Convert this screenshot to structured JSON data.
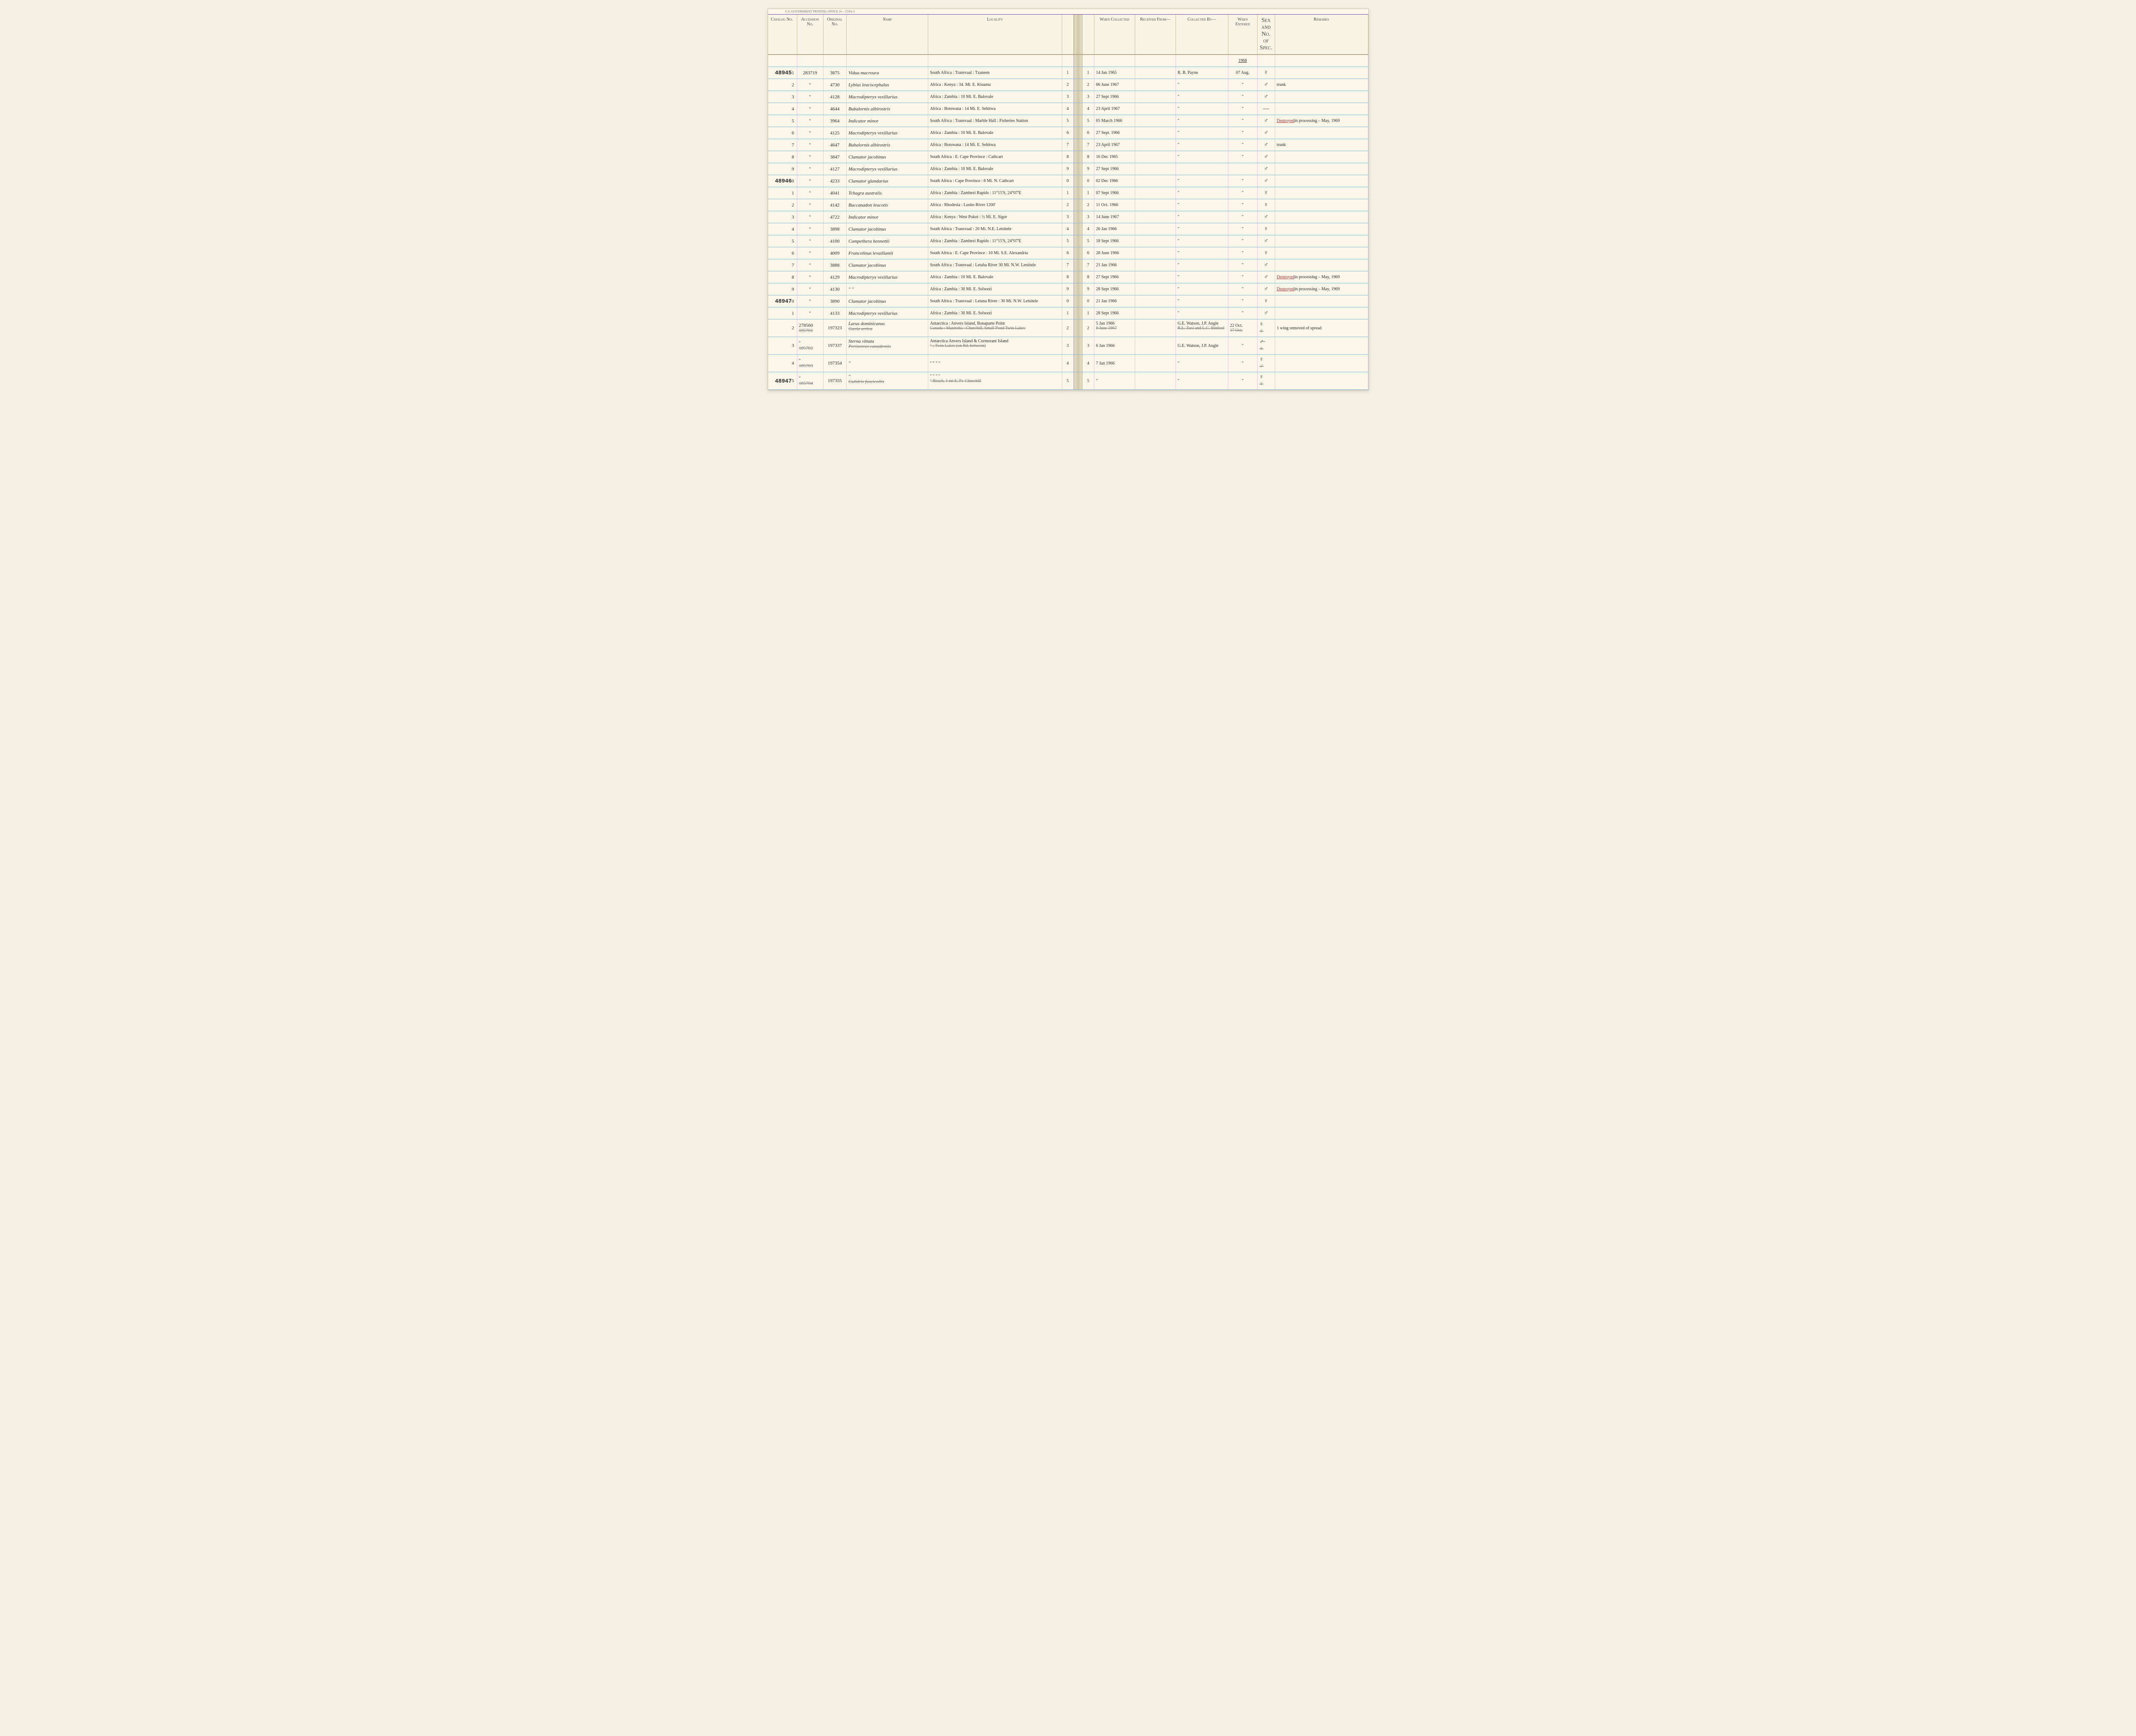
{
  "printing_office": "U.S. Government Printing Office   16—72501-2",
  "headers": {
    "catalog": "Catalog No.",
    "accession": "Accession No.",
    "original": "Original No.",
    "name": "Name",
    "locality": "Locality",
    "when_collected": "When Collected",
    "received_from": "Received From—",
    "collected_by": "Collected By—",
    "when_entered": "When Entered",
    "sex": "Sex and No. of Spec.",
    "remarks": "Remarks"
  },
  "year_entered": "1968",
  "rows": [
    {
      "catalog": "489451",
      "catalog_stamp": "48945",
      "row": "1",
      "accession": "283719",
      "original": "3875",
      "name": "Vidua macroura",
      "locality": "South Africa : Transvaal : Tzaneen",
      "when": "14 Jan 1965",
      "received": "",
      "collected": "R. B. Payne",
      "entered": "07 Aug.",
      "sex": "♀",
      "remarks": ""
    },
    {
      "row": "2",
      "accession": "\"",
      "original": "4730",
      "name": "Lybius leucocephalus",
      "locality": "Africa : Kenya : 34. Mi. E. Kisumu",
      "when": "06 June 1967",
      "received": "",
      "collected": "\"",
      "entered": "\"",
      "sex": "♂",
      "remarks": "trunk"
    },
    {
      "row": "3",
      "accession": "\"",
      "original": "4128",
      "name": "Macrodipteryx vexillarius",
      "locality": "Africa : Zambia : 10 Mi. E. Balovale",
      "when": "27 Sept 1966",
      "received": "",
      "collected": "\"",
      "entered": "\"",
      "sex": "♂",
      "remarks": ""
    },
    {
      "row": "4",
      "accession": "\"",
      "original": "4644",
      "name": "Bubalornis albirostris",
      "locality": "Africa : Botswana : 14 Mi. E. Sehitwa",
      "when": "23 April 1967",
      "received": "",
      "collected": "\"",
      "entered": "\"",
      "sex": "—",
      "remarks": ""
    },
    {
      "row": "5",
      "accession": "\"",
      "original": "3964",
      "name": "Indicator minor",
      "locality": "South Africa : Transvaal : Marble Hall : Fisheries Station",
      "when": "05 March 1966",
      "received": "",
      "collected": "\"",
      "entered": "\"",
      "sex": "♂",
      "remarks": "Destroyed in processing – May, 1969",
      "remarks_destroyed": true
    },
    {
      "row": "6",
      "accession": "\"",
      "original": "4125",
      "name": "Macrodipteryx vexillarius",
      "locality": "Africa : Zambia : 10 Mi. E. Balovale",
      "when": "27 Sept. 1966",
      "received": "",
      "collected": "\"",
      "entered": "\"",
      "sex": "♂",
      "remarks": ""
    },
    {
      "row": "7",
      "accession": "\"",
      "original": "4647",
      "name": "Bubalornis albirostris",
      "locality": "Africa : Botswana : 14 Mi. E. Sehitwa",
      "when": "23 April 1967",
      "received": "",
      "collected": "\"",
      "entered": "\"",
      "sex": "♂",
      "remarks": "trunk"
    },
    {
      "row": "8",
      "accession": "\"",
      "original": "3847",
      "name": "Clamator jacobinus",
      "locality": "South Africa : E. Cape Province : Cathcart",
      "when": "16 Dec 1965",
      "received": "",
      "collected": "\"",
      "entered": "\"",
      "sex": "♂",
      "remarks": ""
    },
    {
      "row": "9",
      "accession": "\"",
      "original": "4127",
      "name": "Macrodipteryx vexillarius",
      "locality": "Africa : Zambia : 10 Mi. E. Balovale",
      "when": "27 Sept 1966",
      "received": "",
      "collected": "",
      "entered": "",
      "sex": "♂",
      "remarks": ""
    },
    {
      "catalog": "489460",
      "catalog_stamp": "48946",
      "row": "0",
      "accession": "\"",
      "original": "4233",
      "name": "Clamator glandarius",
      "locality": "South Africa : Cape Province : 8 Mi. N. Cathcart",
      "when": "02 Dec 1966",
      "received": "",
      "collected": "\"",
      "entered": "\"",
      "sex": "♂",
      "remarks": ""
    },
    {
      "row": "1",
      "accession": "\"",
      "original": "4041",
      "name": "Tchagra australis",
      "locality": "Africa : Zambia : Zambezi Rapids : 11°15'S, 24°07'E",
      "when": "07 Sept 1966",
      "received": "",
      "collected": "\"",
      "entered": "\"",
      "sex": "♀",
      "remarks": ""
    },
    {
      "row": "2",
      "accession": "\"",
      "original": "4142",
      "name": "Buccanadon leucotis",
      "locality": "Africa : Rhodesia : Lusito River 1200'",
      "when": "11 Oct. 1966",
      "received": "",
      "collected": "\"",
      "entered": "\"",
      "sex": "♀",
      "remarks": ""
    },
    {
      "row": "3",
      "accession": "\"",
      "original": "4722",
      "name": "Indicator minor",
      "locality": "Africa : Kenya : West Pokot : ½ Mi. E. Sigor",
      "when": "14 June 1967",
      "received": "",
      "collected": "\"",
      "entered": "\"",
      "sex": "♂",
      "remarks": ""
    },
    {
      "row": "4",
      "accession": "\"",
      "original": "3898",
      "name": "Clamator jacobinus",
      "locality": "South Africa : Transvaal : 20 Mi. N.E. Letsitele",
      "when": "26 Jan 1966",
      "received": "",
      "collected": "\"",
      "entered": "\"",
      "sex": "♀",
      "remarks": ""
    },
    {
      "row": "5",
      "accession": "\"",
      "original": "4100",
      "name": "Campethera bennettii",
      "locality": "Africa : Zambia : Zambezi Rapids : 11°15'S, 24°07'E",
      "when": "18 Sept 1966",
      "received": "",
      "collected": "\"",
      "entered": "\"",
      "sex": "♂",
      "remarks": ""
    },
    {
      "row": "6",
      "accession": "\"",
      "original": "4009",
      "name": "Francolinus levaillantii",
      "locality": "South Africa : E. Cape Province : 10 Mi. S.E. Alexandria",
      "when": "28 June 1966",
      "received": "",
      "collected": "\"",
      "entered": "\"",
      "sex": "♀",
      "remarks": ""
    },
    {
      "row": "7",
      "accession": "\"",
      "original": "3888",
      "name": "Clamator jacobinus",
      "locality": "South Africa : Transvaal : Letaba River 30 Mi. N.W. Letsitele",
      "when": "21 Jan 1966",
      "received": "",
      "collected": "\"",
      "entered": "\"",
      "sex": "♂",
      "remarks": ""
    },
    {
      "row": "8",
      "accession": "\"",
      "original": "4129",
      "name": "Macrodipteryx vexillarius",
      "locality": "Africa : Zambia : 10 Mi. E. Balovale",
      "when": "27 Sept 1966",
      "received": "",
      "collected": "\"",
      "entered": "\"",
      "sex": "♂",
      "remarks": "Destroyed in processing – May, 1969",
      "remarks_destroyed": true
    },
    {
      "row": "9",
      "accession": "\"",
      "original": "4130",
      "name": "\"   \"",
      "locality": "Africa : Zambia : 30 Mi. E. Solwezi",
      "when": "28 Sept 1966",
      "received": "",
      "collected": "\"",
      "entered": "\"",
      "sex": "♂",
      "remarks": "Destroyed in processing – May, 1969",
      "remarks_destroyed": true
    },
    {
      "catalog": "489470",
      "catalog_stamp": "48947",
      "row": "0",
      "accession": "\"",
      "original": "3890",
      "name": "Clamator jacobinus",
      "locality": "South Africa : Transvaal : Letana River : 30 Mi. N.W. Letsitele",
      "when": "21 Jan 1966",
      "received": "",
      "collected": "\"",
      "entered": "\"",
      "sex": "♀",
      "remarks": ""
    },
    {
      "row": "1",
      "accession": "\"",
      "original": "4133",
      "name": "Macrodipteryx vexillarius",
      "locality": "Africa : Zambia : 30 Mi. E. Solwezi",
      "when": "28 Sept 1966",
      "received": "",
      "collected": "\"",
      "entered": "\"",
      "sex": "♂",
      "remarks": ""
    },
    {
      "row": "2",
      "accession": "278560",
      "accession_strike": "185701",
      "original": "197323",
      "name": "Larus dominicanus",
      "name_strike": "Gavia artica",
      "locality": "Antarctica : Anvers Island, Bonaparte Point",
      "locality_strike": "Canada : Manitoba : Churchill, Small Pond Twin Lakes",
      "when": "5 Jan 1966",
      "when_strike": "9 June 1967",
      "received": "",
      "collected": "G.E. Watson, J.P. Angle",
      "collected_strike": "R.L. Zusi and L.C. Binford",
      "entered": "22 Oct.",
      "entered_strike": "17 Oct.",
      "sex": "♀",
      "sex_strike": "♀",
      "remarks": "1 wing removed of spread"
    },
    {
      "row": "3",
      "accession": "\"",
      "accession_strike": "185702",
      "original": "197337",
      "name": "Sterna vittata",
      "name_strike": "Perisoreus canadensis",
      "locality": "Antarctica Anvers Island & Cormorant Island",
      "locality_strike": "\" ; Twin Lakes (on Rd. between)",
      "when": "6 Jan 1966",
      "received": "",
      "collected": "G.E. Watson, J.P. Angle",
      "entered": "\"",
      "sex": "♂̶",
      "sex_strike": "♀",
      "remarks": ""
    },
    {
      "row": "4",
      "accession": "\"",
      "accession_strike": "185703",
      "original": "197354",
      "name": "\"",
      "locality": "\"    \"    \"    \"",
      "when": "7 Jan 1966",
      "received": "",
      "collected": "\"",
      "entered": "\"",
      "sex": "♀",
      "sex_strike": "♂",
      "remarks": ""
    },
    {
      "catalog": "489475",
      "catalog_stamp": "48947",
      "row": "5",
      "accession": "\"",
      "accession_strike": "185704",
      "original": "197355",
      "name": "\"",
      "name_strike": "Calidris fuscicollis",
      "locality": "\"    \"    \"    \"",
      "locality_strike": "\" Beach, 1 mi E. Ft. Churchill",
      "when": "\"",
      "received": "",
      "collected": "\"",
      "entered": "\"",
      "sex": "♀",
      "sex_strike": "♀",
      "remarks": ""
    }
  ]
}
